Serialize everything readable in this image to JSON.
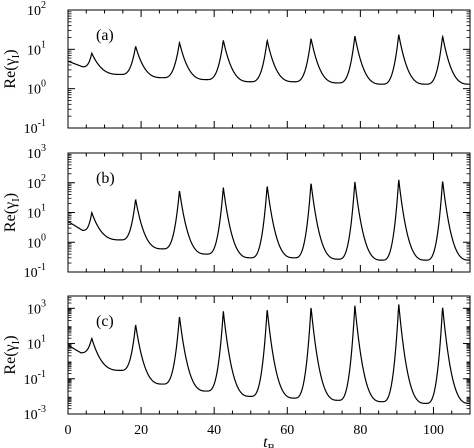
{
  "chart_data": [
    {
      "type": "line",
      "panel_label": "(a)",
      "ylabel": "Re(γ",
      "ylabel_sub": "I",
      "ylabel_close": ")",
      "yscale": "log",
      "ylim": [
        0.1,
        100
      ],
      "yticks": [
        {
          "base": "10",
          "exp": "-1"
        },
        {
          "base": "10",
          "exp": "0"
        },
        {
          "base": "10",
          "exp": "1"
        },
        {
          "base": "10",
          "exp": "2"
        }
      ],
      "xlim": [
        0,
        110
      ],
      "baseline": 5,
      "peaks": [
        {
          "x": 6.5,
          "y": 8
        },
        {
          "x": 18.5,
          "y": 12
        },
        {
          "x": 30.5,
          "y": 15
        },
        {
          "x": 42.5,
          "y": 17
        },
        {
          "x": 54.5,
          "y": 17
        },
        {
          "x": 66.5,
          "y": 19
        },
        {
          "x": 78.5,
          "y": 22
        },
        {
          "x": 90.5,
          "y": 24
        },
        {
          "x": 102.5,
          "y": 22
        }
      ],
      "troughs": [
        {
          "x": 4,
          "y": 3.6
        },
        {
          "x": 14.5,
          "y": 2.3
        },
        {
          "x": 26,
          "y": 1.9
        },
        {
          "x": 38,
          "y": 1.7
        },
        {
          "x": 50,
          "y": 1.5
        },
        {
          "x": 62,
          "y": 1.5
        },
        {
          "x": 74,
          "y": 1.4
        },
        {
          "x": 86,
          "y": 1.3
        },
        {
          "x": 98,
          "y": 1.3
        },
        {
          "x": 110,
          "y": 1.3
        }
      ]
    },
    {
      "type": "line",
      "panel_label": "(b)",
      "ylabel": "Re(γ",
      "ylabel_sub": "I",
      "ylabel_close": ")",
      "yscale": "log",
      "ylim": [
        0.1,
        1000
      ],
      "yticks": [
        {
          "base": "10",
          "exp": "-1"
        },
        {
          "base": "10",
          "exp": "0"
        },
        {
          "base": "10",
          "exp": "1"
        },
        {
          "base": "10",
          "exp": "2"
        },
        {
          "base": "10",
          "exp": "3"
        }
      ],
      "xlim": [
        0,
        110
      ],
      "baseline": 5,
      "peaks": [
        {
          "x": 6.5,
          "y": 10
        },
        {
          "x": 18.5,
          "y": 28
        },
        {
          "x": 30.5,
          "y": 55
        },
        {
          "x": 42.5,
          "y": 70
        },
        {
          "x": 54.5,
          "y": 80
        },
        {
          "x": 66.5,
          "y": 100
        },
        {
          "x": 78.5,
          "y": 110
        },
        {
          "x": 90.5,
          "y": 130
        },
        {
          "x": 102.5,
          "y": 120
        }
      ],
      "troughs": [
        {
          "x": 4,
          "y": 2.5
        },
        {
          "x": 14.5,
          "y": 1.2
        },
        {
          "x": 26,
          "y": 0.6
        },
        {
          "x": 38,
          "y": 0.4
        },
        {
          "x": 50,
          "y": 0.3
        },
        {
          "x": 62,
          "y": 0.3
        },
        {
          "x": 74,
          "y": 0.27
        },
        {
          "x": 86,
          "y": 0.25
        },
        {
          "x": 98,
          "y": 0.25
        },
        {
          "x": 110,
          "y": 0.25
        }
      ]
    },
    {
      "type": "line",
      "panel_label": "(c)",
      "ylabel": "Re(γ",
      "ylabel_sub": "I",
      "ylabel_close": ")",
      "yscale": "log",
      "ylim": [
        0.001,
        5000
      ],
      "yticks": [
        {
          "base": "10",
          "exp": "-3"
        },
        {
          "base": "10",
          "exp": "-1"
        },
        {
          "base": "10",
          "exp": "1"
        },
        {
          "base": "10",
          "exp": "3"
        }
      ],
      "xlim": [
        0,
        110
      ],
      "xticks": [
        0,
        20,
        40,
        60,
        80,
        100
      ],
      "xlabel": "t",
      "xlabel_sub": "B",
      "baseline": 8,
      "peaks": [
        {
          "x": 6.5,
          "y": 20
        },
        {
          "x": 18.5,
          "y": 120
        },
        {
          "x": 30.5,
          "y": 350
        },
        {
          "x": 42.5,
          "y": 700
        },
        {
          "x": 54.5,
          "y": 900
        },
        {
          "x": 66.5,
          "y": 1200
        },
        {
          "x": 78.5,
          "y": 1500
        },
        {
          "x": 90.5,
          "y": 1800
        },
        {
          "x": 102.5,
          "y": 1300
        }
      ],
      "troughs": [
        {
          "x": 3.5,
          "y": 3
        },
        {
          "x": 14.5,
          "y": 0.3
        },
        {
          "x": 26,
          "y": 0.05
        },
        {
          "x": 38,
          "y": 0.02
        },
        {
          "x": 50,
          "y": 0.01
        },
        {
          "x": 62,
          "y": 0.008
        },
        {
          "x": 74,
          "y": 0.006
        },
        {
          "x": 86,
          "y": 0.005
        },
        {
          "x": 98,
          "y": 0.004
        },
        {
          "x": 110,
          "y": 0.004
        }
      ]
    }
  ]
}
